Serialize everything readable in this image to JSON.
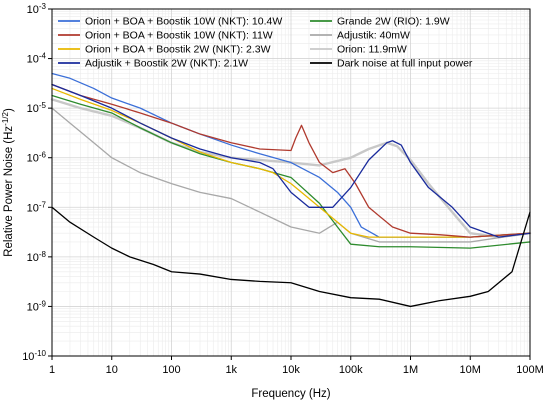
{
  "chart_data": {
    "type": "line",
    "xscale": "log",
    "yscale": "log",
    "xlim": [
      1,
      100000000
    ],
    "ylim": [
      1e-10,
      0.001
    ],
    "grid": true,
    "legend_position": "top",
    "xlabel": "Frequency (Hz)",
    "ylabel": "Relative Power Noise (Hz",
    "ylabel_sup": "-1/2",
    "ylabel_end": ")",
    "x_tick_labels": [
      "1",
      "10",
      "100",
      "1k",
      "10k",
      "100k",
      "1M",
      "10M",
      "100M"
    ],
    "y_tick_labels": [
      {
        "base": "10",
        "exp": "-3"
      },
      {
        "base": "10",
        "exp": "-4"
      },
      {
        "base": "10",
        "exp": "-5"
      },
      {
        "base": "10",
        "exp": "-6"
      },
      {
        "base": "10",
        "exp": "-7"
      },
      {
        "base": "10",
        "exp": "-8"
      },
      {
        "base": "10",
        "exp": "-9"
      },
      {
        "base": "10",
        "exp": "-10"
      }
    ],
    "series": [
      {
        "name": "Orion + BOA + Boostik 10W (NKT): 10.4W",
        "color": "#3b6fd8",
        "points": [
          [
            1,
            5e-05
          ],
          [
            2,
            4e-05
          ],
          [
            5,
            2.5e-05
          ],
          [
            10,
            1.6e-05
          ],
          [
            30,
            1e-05
          ],
          [
            100,
            5e-06
          ],
          [
            300,
            3e-06
          ],
          [
            1000,
            1.8e-06
          ],
          [
            3000,
            1.2e-06
          ],
          [
            10000,
            8e-07
          ],
          [
            30000,
            4e-07
          ],
          [
            60000,
            2e-07
          ],
          [
            100000,
            1e-07
          ],
          [
            150000,
            4e-08
          ],
          [
            300000,
            2.5e-08
          ],
          [
            1000000,
            2.5e-08
          ],
          [
            3000000,
            2.5e-08
          ],
          [
            10000000,
            2.5e-08
          ],
          [
            100000000,
            3e-08
          ]
        ]
      },
      {
        "name": "Orion + BOA + Boostik 10W (NKT): 11W",
        "color": "#b03a2e",
        "points": [
          [
            1,
            3e-05
          ],
          [
            3,
            1.8e-05
          ],
          [
            10,
            1.2e-05
          ],
          [
            30,
            8e-06
          ],
          [
            100,
            5e-06
          ],
          [
            300,
            3e-06
          ],
          [
            1000,
            2e-06
          ],
          [
            3000,
            1.5e-06
          ],
          [
            10000,
            1.4e-06
          ],
          [
            12000,
            2.5e-06
          ],
          [
            15000,
            4.5e-06
          ],
          [
            20000,
            2e-06
          ],
          [
            30000,
            8e-07
          ],
          [
            50000,
            5e-07
          ],
          [
            80000,
            6e-07
          ],
          [
            120000,
            3e-07
          ],
          [
            200000,
            1e-07
          ],
          [
            500000,
            4e-08
          ],
          [
            1000000,
            3e-08
          ],
          [
            3000000,
            2.8e-08
          ],
          [
            10000000,
            2.5e-08
          ],
          [
            100000000,
            3e-08
          ]
        ]
      },
      {
        "name": "Orion + BOA + Boostik 2W (NKT): 2.3W",
        "color": "#e8b800",
        "points": [
          [
            1,
            2.5e-05
          ],
          [
            3,
            1.5e-05
          ],
          [
            10,
            9e-06
          ],
          [
            30,
            5e-06
          ],
          [
            100,
            2.5e-06
          ],
          [
            300,
            1.3e-06
          ],
          [
            1000,
            8e-07
          ],
          [
            3000,
            6e-07
          ],
          [
            5000,
            5e-07
          ],
          [
            10000,
            3e-07
          ],
          [
            20000,
            1.5e-07
          ],
          [
            50000,
            6e-08
          ],
          [
            100000,
            3e-08
          ],
          [
            200000,
            2.5e-08
          ],
          [
            500000,
            2.5e-08
          ],
          [
            1000000,
            2.5e-08
          ],
          [
            10000000,
            2.5e-08
          ],
          [
            100000000,
            3e-08
          ]
        ]
      },
      {
        "name": "Adjustik + Boostik 2W (NKT): 2.1W",
        "color": "#1a2b9c",
        "points": [
          [
            1,
            3e-05
          ],
          [
            3,
            1.8e-05
          ],
          [
            10,
            1e-05
          ],
          [
            30,
            5e-06
          ],
          [
            100,
            2.5e-06
          ],
          [
            300,
            1.5e-06
          ],
          [
            1000,
            1e-06
          ],
          [
            3000,
            8e-07
          ],
          [
            5000,
            6e-07
          ],
          [
            10000,
            2e-07
          ],
          [
            20000,
            1e-07
          ],
          [
            50000,
            1e-07
          ],
          [
            100000,
            2.5e-07
          ],
          [
            200000,
            9e-07
          ],
          [
            400000,
            2e-06
          ],
          [
            500000,
            2.2e-06
          ],
          [
            700000,
            1.8e-06
          ],
          [
            1000000,
            8e-07
          ],
          [
            2000000,
            2.5e-07
          ],
          [
            5000000,
            1e-07
          ],
          [
            10000000,
            4e-08
          ],
          [
            30000000,
            2.5e-08
          ],
          [
            100000000,
            3e-08
          ]
        ]
      },
      {
        "name": "Grande 2W (RIO): 1.9W",
        "color": "#2e8b2e",
        "points": [
          [
            1,
            1.8e-05
          ],
          [
            3,
            1.2e-05
          ],
          [
            10,
            8e-06
          ],
          [
            30,
            4e-06
          ],
          [
            100,
            2e-06
          ],
          [
            300,
            1.2e-06
          ],
          [
            1000,
            8e-07
          ],
          [
            3000,
            6e-07
          ],
          [
            10000,
            4e-07
          ],
          [
            30000,
            1.2e-07
          ],
          [
            60000,
            4e-08
          ],
          [
            100000,
            1.8e-08
          ],
          [
            300000,
            1.6e-08
          ],
          [
            1000000,
            1.6e-08
          ],
          [
            10000000,
            1.5e-08
          ],
          [
            100000000,
            2e-08
          ]
        ]
      },
      {
        "name": "Adjustik: 40mW",
        "color": "#a8a8a8",
        "points": [
          [
            1,
            1e-05
          ],
          [
            2,
            5e-06
          ],
          [
            5,
            2e-06
          ],
          [
            10,
            1e-06
          ],
          [
            30,
            5e-07
          ],
          [
            100,
            3e-07
          ],
          [
            300,
            2e-07
          ],
          [
            1000,
            1.5e-07
          ],
          [
            3000,
            8e-08
          ],
          [
            10000,
            4e-08
          ],
          [
            30000,
            3e-08
          ],
          [
            60000,
            5e-08
          ],
          [
            100000,
            3e-08
          ],
          [
            300000,
            2e-08
          ],
          [
            1000000,
            2e-08
          ],
          [
            10000000,
            2e-08
          ],
          [
            100000000,
            3e-08
          ]
        ]
      },
      {
        "name": "Orion: 11.9mW",
        "color": "#c8c8c8",
        "points": [
          [
            1,
            1.5e-05
          ],
          [
            3,
            1e-05
          ],
          [
            10,
            7e-06
          ],
          [
            30,
            4e-06
          ],
          [
            100,
            2e-06
          ],
          [
            300,
            1.3e-06
          ],
          [
            1000,
            1e-06
          ],
          [
            3000,
            9e-07
          ],
          [
            10000,
            8e-07
          ],
          [
            30000,
            7e-07
          ],
          [
            100000,
            1e-06
          ],
          [
            200000,
            1.5e-06
          ],
          [
            400000,
            2e-06
          ],
          [
            600000,
            1.7e-06
          ],
          [
            1000000,
            9e-07
          ],
          [
            2000000,
            3e-07
          ],
          [
            5000000,
            8e-08
          ],
          [
            10000000,
            3e-08
          ],
          [
            30000000,
            2.5e-08
          ],
          [
            100000000,
            3e-08
          ]
        ]
      },
      {
        "name": "Dark noise at full input power",
        "color": "#000000",
        "points": [
          [
            1,
            1e-07
          ],
          [
            2,
            5e-08
          ],
          [
            5,
            2.5e-08
          ],
          [
            10,
            1.5e-08
          ],
          [
            20,
            1e-08
          ],
          [
            50,
            7e-09
          ],
          [
            100,
            5e-09
          ],
          [
            300,
            4.5e-09
          ],
          [
            1000,
            3.5e-09
          ],
          [
            3000,
            3.2e-09
          ],
          [
            10000,
            3e-09
          ],
          [
            30000,
            2e-09
          ],
          [
            100000,
            1.5e-09
          ],
          [
            300000,
            1.4e-09
          ],
          [
            1000000,
            1e-09
          ],
          [
            3000000,
            1.3e-09
          ],
          [
            10000000,
            1.6e-09
          ],
          [
            20000000,
            2e-09
          ],
          [
            50000000,
            5e-09
          ],
          [
            100000000,
            8e-08
          ]
        ]
      }
    ]
  }
}
